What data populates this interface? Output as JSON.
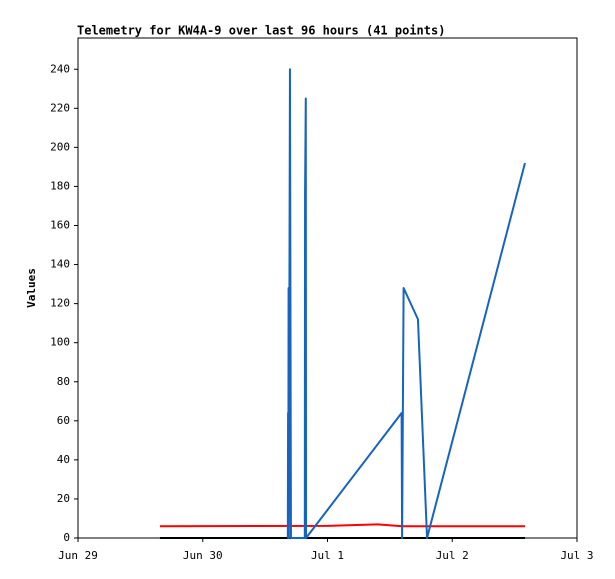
{
  "chart_data": {
    "type": "line",
    "title": "Telemetry for KW4A-9 over last 96 hours (41 points)",
    "y_label": "Values",
    "xlim": [
      0,
      4
    ],
    "xticks": [
      {
        "value": 0,
        "label": "Jun 29"
      },
      {
        "value": 1,
        "label": "Jun 30"
      },
      {
        "value": 2,
        "label": "Jul 1"
      },
      {
        "value": 3,
        "label": "Jul 2"
      },
      {
        "value": 4,
        "label": "Jul 3"
      }
    ],
    "ylim": [
      0,
      256
    ],
    "yticks": [
      0,
      20,
      40,
      60,
      80,
      100,
      120,
      140,
      160,
      180,
      200,
      220,
      240
    ],
    "series": [
      {
        "color": "#000000",
        "x": [
          0.657,
          3.583
        ],
        "values": [
          0,
          0
        ]
      },
      {
        "color": "#ff0000",
        "x": [
          0.657,
          2.0,
          2.4,
          2.6,
          3.583
        ],
        "values": [
          6,
          6.2,
          7,
          6,
          6
        ]
      },
      {
        "color": "#1565c0",
        "x": [
          1.682,
          1.684,
          1.686,
          1.688,
          1.69,
          1.699,
          1.707,
          1.818,
          1.82,
          1.826,
          1.828,
          2.594,
          2.598,
          2.61,
          2.725,
          2.798,
          3.583
        ],
        "values": [
          0,
          64,
          0,
          128,
          0,
          240,
          0,
          0,
          176,
          225,
          0,
          64,
          0,
          128,
          112,
          0,
          192
        ]
      }
    ]
  }
}
